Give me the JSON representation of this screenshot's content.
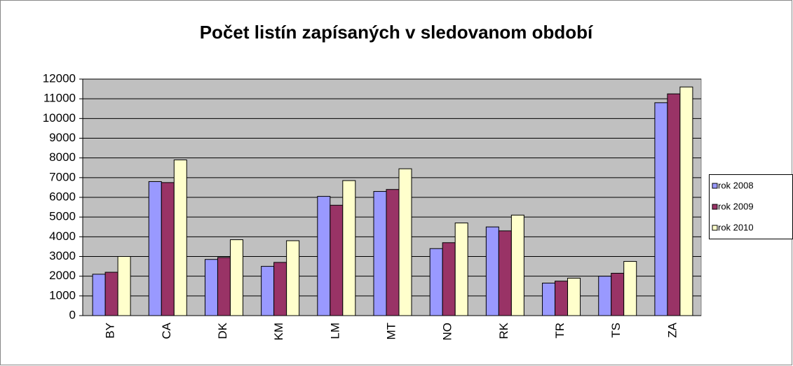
{
  "chart_data": {
    "type": "bar",
    "title": "Počet listín zapísaných v sledovanom období",
    "categories": [
      "BY",
      "CA",
      "DK",
      "KM",
      "LM",
      "MT",
      "NO",
      "RK",
      "TR",
      "TS",
      "ZA"
    ],
    "series": [
      {
        "name": "rok 2008",
        "color": "#9999ff",
        "values": [
          2100,
          6800,
          2850,
          2500,
          6050,
          6300,
          3400,
          4500,
          1650,
          2000,
          10800
        ]
      },
      {
        "name": "rok 2009",
        "color": "#993366",
        "values": [
          2200,
          6750,
          2950,
          2700,
          5600,
          6400,
          3700,
          4300,
          1750,
          2150,
          11250
        ]
      },
      {
        "name": "rok 2010",
        "color": "#ffffcc",
        "values": [
          3000,
          7900,
          3850,
          3800,
          6850,
          7450,
          4700,
          5100,
          1900,
          2750,
          11600
        ]
      }
    ],
    "ylim": [
      0,
      12000
    ],
    "yticks": [
      0,
      1000,
      2000,
      3000,
      4000,
      5000,
      6000,
      7000,
      8000,
      9000,
      10000,
      11000,
      12000
    ],
    "grid": true,
    "legend": "right"
  }
}
